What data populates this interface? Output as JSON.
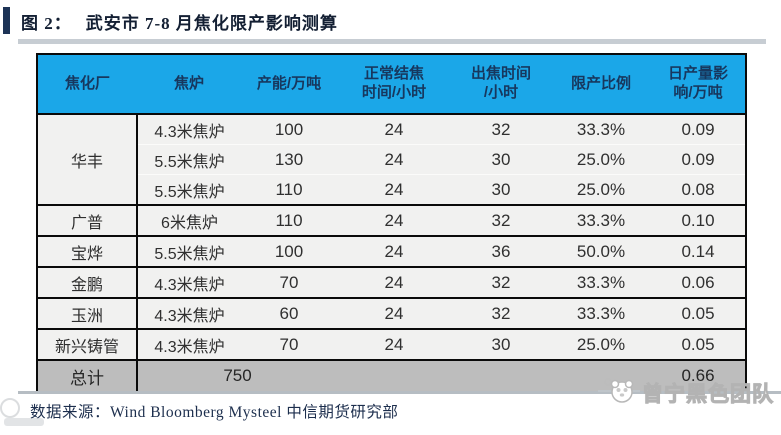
{
  "figure": {
    "label": "图 2：",
    "title": "武安市 7-8 月焦化限产影响测算"
  },
  "table": {
    "headers": [
      [
        "焦化厂"
      ],
      [
        "焦炉"
      ],
      [
        "产能/万吨"
      ],
      [
        "正常结焦",
        "时间/小时"
      ],
      [
        "出焦时间",
        "/小时"
      ],
      [
        "限产比例"
      ],
      [
        "日产量影",
        "响/万吨"
      ]
    ],
    "groups": [
      {
        "company": "华丰",
        "rows": [
          [
            "4.3米焦炉",
            "100",
            "24",
            "32",
            "33.3%",
            "0.09"
          ],
          [
            "5.5米焦炉",
            "130",
            "24",
            "30",
            "25.0%",
            "0.09"
          ],
          [
            "5.5米焦炉",
            "110",
            "24",
            "30",
            "25.0%",
            "0.08"
          ]
        ]
      },
      {
        "company": "广普",
        "rows": [
          [
            "6米焦炉",
            "110",
            "24",
            "32",
            "33.3%",
            "0.10"
          ]
        ]
      },
      {
        "company": "宝烨",
        "rows": [
          [
            "5.5米焦炉",
            "100",
            "24",
            "36",
            "50.0%",
            "0.14"
          ]
        ]
      },
      {
        "company": "金鹏",
        "rows": [
          [
            "4.3米焦炉",
            "70",
            "24",
            "32",
            "33.3%",
            "0.06"
          ]
        ]
      },
      {
        "company": "玉洲",
        "rows": [
          [
            "4.3米焦炉",
            "60",
            "24",
            "32",
            "33.3%",
            "0.05"
          ]
        ]
      },
      {
        "company": "新兴铸管",
        "rows": [
          [
            "4.3米焦炉",
            "70",
            "24",
            "30",
            "25.0%",
            "0.05"
          ]
        ]
      }
    ],
    "total": {
      "label": "总计",
      "capacity": "750",
      "impact": "0.66"
    }
  },
  "source": {
    "text": "数据来源：Wind Bloomberg Mysteel 中信期货研究部"
  },
  "watermark": {
    "team": "曾宁黑色团队"
  },
  "colors": {
    "header_bg": "#1ba7e8",
    "header_text": "#17375e",
    "total_row_bg": "#bdbdbd",
    "row_bg": "#f1f1f0",
    "border_black": "#0a0a0a",
    "title_navy": "#131f33",
    "source_navy": "#1c2e4d",
    "divider_gray": "#c7cdd3"
  }
}
